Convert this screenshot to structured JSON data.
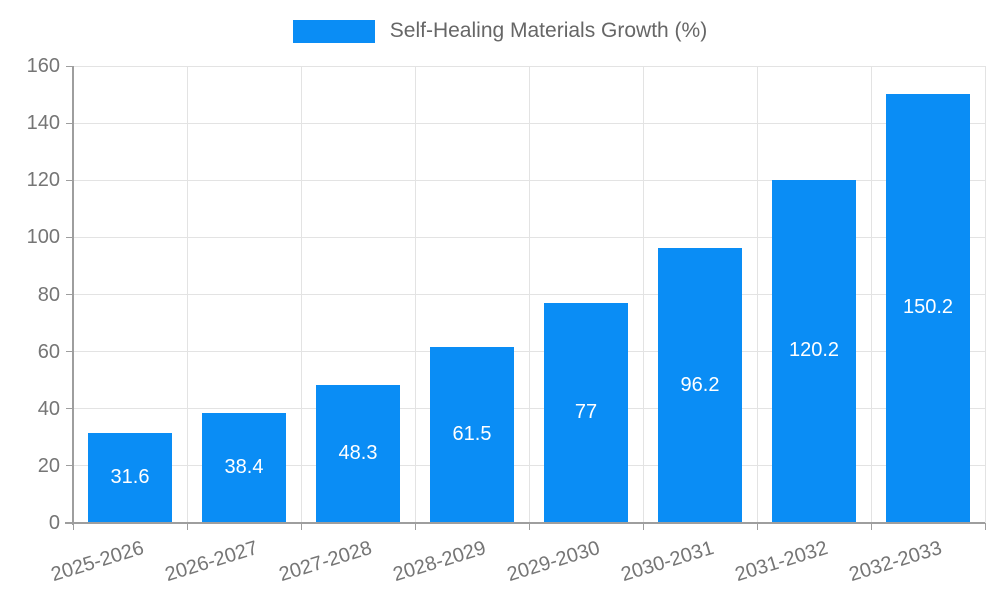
{
  "legend": {
    "label": "Self-Healing Materials Growth (%)"
  },
  "chart_data": {
    "type": "bar",
    "title": "Self-Healing Materials Growth (%)",
    "categories": [
      "2025-2026",
      "2026-2027",
      "2027-2028",
      "2028-2029",
      "2029-2030",
      "2030-2031",
      "2031-2032",
      "2032-2033"
    ],
    "values": [
      31.6,
      38.4,
      48.3,
      61.5,
      77,
      96.2,
      120.2,
      150.2
    ],
    "xlabel": "",
    "ylabel": "",
    "ylim": [
      0,
      160
    ],
    "yticks": [
      0,
      20,
      40,
      60,
      80,
      100,
      120,
      140,
      160
    ],
    "grid": true,
    "legend_position": "top-center",
    "value_labels_inside_bars": true
  },
  "colors": {
    "bar": "#0a8df5",
    "grid": "#e3e3e3",
    "axis": "#9e9e9e",
    "tick_label": "#757575",
    "legend_text": "#666666",
    "value_label": "#ffffff",
    "background": "#ffffff"
  }
}
